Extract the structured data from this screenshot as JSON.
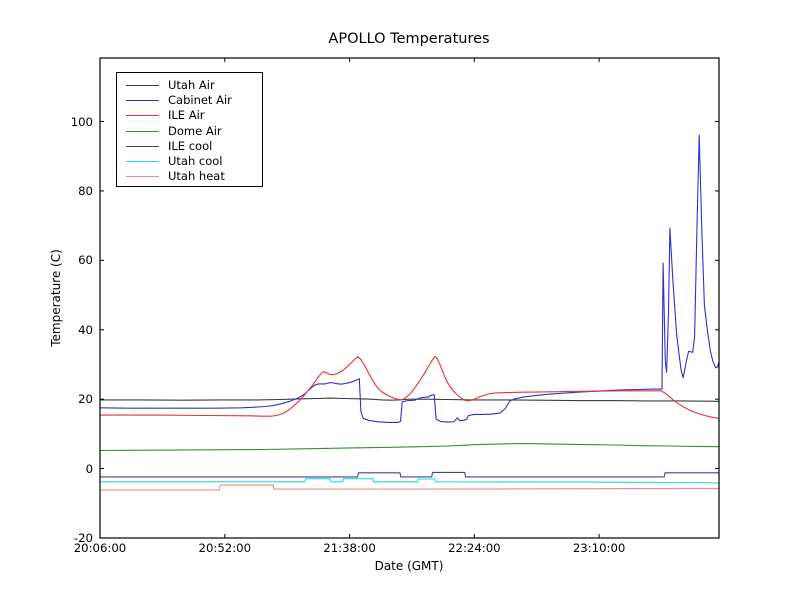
{
  "figure": {
    "title": "APOLLO Temperatures",
    "xlabel": "Date (GMT)",
    "ylabel": "Temperature (C)"
  },
  "chart_data": {
    "type": "line",
    "title": "APOLLO Temperatures",
    "xlabel": "Date (GMT)",
    "ylabel": "Temperature (C)",
    "x_unit": "minutes after 20:06:00 GMT",
    "xlim": [
      0,
      228.2
    ],
    "ylim": [
      -20,
      118.3
    ],
    "yticks": [
      -20,
      0,
      20,
      40,
      60,
      80,
      100
    ],
    "xticks": [
      {
        "t": 0,
        "label": "20:06:00"
      },
      {
        "t": 46,
        "label": "20:52:00"
      },
      {
        "t": 92,
        "label": "21:38:00"
      },
      {
        "t": 138,
        "label": "22:24:00"
      },
      {
        "t": 184,
        "label": "23:10:00"
      }
    ],
    "grid": false,
    "legend_position": "upper left",
    "series": [
      {
        "name": "Utah Air",
        "color": "#3c3c3c",
        "points": [
          [
            0,
            19.8
          ],
          [
            15,
            19.8
          ],
          [
            30,
            19.7
          ],
          [
            45,
            19.8
          ],
          [
            58,
            19.8
          ],
          [
            66,
            19.9
          ],
          [
            70,
            20.0
          ],
          [
            75,
            20.1
          ],
          [
            80,
            20.2
          ],
          [
            85,
            20.3
          ],
          [
            90,
            20.2
          ],
          [
            95,
            20.1
          ],
          [
            100,
            20.0
          ],
          [
            104,
            19.8
          ],
          [
            107,
            19.7
          ],
          [
            110,
            19.8
          ],
          [
            114,
            20.0
          ],
          [
            120,
            20.0
          ],
          [
            128,
            19.9
          ],
          [
            138,
            19.8
          ],
          [
            150,
            19.8
          ],
          [
            162,
            19.7
          ],
          [
            175,
            19.6
          ],
          [
            188,
            19.6
          ],
          [
            200,
            19.5
          ],
          [
            214,
            19.5
          ],
          [
            228.2,
            19.4
          ]
        ]
      },
      {
        "name": "Cabinet Air",
        "color": "#3030d0",
        "points": [
          [
            0,
            17.5
          ],
          [
            12,
            17.4
          ],
          [
            28,
            17.4
          ],
          [
            42,
            17.4
          ],
          [
            52,
            17.5
          ],
          [
            57,
            17.7
          ],
          [
            61,
            17.9
          ],
          [
            64,
            18.2
          ],
          [
            67,
            18.7
          ],
          [
            70,
            19.4
          ],
          [
            73,
            20.3
          ],
          [
            75.5,
            21.5
          ],
          [
            77.5,
            23.0
          ],
          [
            79,
            24.0
          ],
          [
            80.5,
            24.4
          ],
          [
            83,
            24.4
          ],
          [
            85,
            24.8
          ],
          [
            87,
            24.5
          ],
          [
            89,
            24.3
          ],
          [
            91,
            24.6
          ],
          [
            93,
            25.0
          ],
          [
            94.5,
            25.5
          ],
          [
            95.6,
            25.9
          ],
          [
            96.2,
            16.5
          ],
          [
            97,
            14.5
          ],
          [
            99,
            13.9
          ],
          [
            102,
            13.5
          ],
          [
            106,
            13.3
          ],
          [
            110,
            13.3
          ],
          [
            110.8,
            13.6
          ],
          [
            111.4,
            19.2
          ],
          [
            113.5,
            19.6
          ],
          [
            116,
            19.7
          ],
          [
            117.3,
            20.2
          ],
          [
            119,
            20.5
          ],
          [
            121,
            20.6
          ],
          [
            121.8,
            21.1
          ],
          [
            123.2,
            21.3
          ],
          [
            123.9,
            14.2
          ],
          [
            125.5,
            13.6
          ],
          [
            128,
            13.4
          ],
          [
            130.5,
            13.5
          ],
          [
            131.7,
            14.6
          ],
          [
            132.7,
            13.8
          ],
          [
            134,
            13.9
          ],
          [
            135.2,
            14.2
          ],
          [
            135.8,
            15.3
          ],
          [
            138,
            15.6
          ],
          [
            141,
            15.6
          ],
          [
            144.5,
            15.7
          ],
          [
            147.4,
            16.0
          ],
          [
            149.3,
            17.2
          ],
          [
            151.1,
            19.5
          ],
          [
            153,
            20.1
          ],
          [
            156,
            20.6
          ],
          [
            160,
            21.0
          ],
          [
            165,
            21.4
          ],
          [
            170,
            21.7
          ],
          [
            176,
            22.0
          ],
          [
            183,
            22.3
          ],
          [
            191,
            22.6
          ],
          [
            199,
            22.8
          ],
          [
            204,
            22.9
          ],
          [
            207.2,
            22.9
          ],
          [
            207.6,
            59.2
          ],
          [
            208.4,
            31.0
          ],
          [
            208.9,
            27.7
          ],
          [
            209.6,
            45.0
          ],
          [
            210.1,
            69.3
          ],
          [
            211.2,
            54.0
          ],
          [
            212.6,
            38.5
          ],
          [
            214.2,
            28.5
          ],
          [
            215,
            26.2
          ],
          [
            216.2,
            31.0
          ],
          [
            217,
            33.8
          ],
          [
            218.5,
            33.5
          ],
          [
            219.2,
            38.0
          ],
          [
            220.1,
            70.0
          ],
          [
            220.9,
            96.1
          ],
          [
            221.9,
            68.0
          ],
          [
            222.8,
            47.0
          ],
          [
            223.8,
            40.5
          ],
          [
            225,
            34.0
          ],
          [
            226,
            30.8
          ],
          [
            227,
            29.0
          ],
          [
            227.7,
            29.3
          ],
          [
            228.2,
            30.8
          ]
        ]
      },
      {
        "name": "ILE Air",
        "color": "#e43535",
        "points": [
          [
            0,
            15.4
          ],
          [
            20,
            15.4
          ],
          [
            40,
            15.3
          ],
          [
            55,
            15.2
          ],
          [
            60,
            15.1
          ],
          [
            63,
            15.1
          ],
          [
            65,
            15.3
          ],
          [
            67.5,
            15.9
          ],
          [
            69.5,
            16.8
          ],
          [
            71.5,
            18.1
          ],
          [
            73.5,
            19.6
          ],
          [
            75.5,
            21.3
          ],
          [
            77.5,
            23.2
          ],
          [
            79.5,
            25.2
          ],
          [
            81,
            26.9
          ],
          [
            82.2,
            27.9
          ],
          [
            83.3,
            27.7
          ],
          [
            84.5,
            27.2
          ],
          [
            85.9,
            27.0
          ],
          [
            87.5,
            27.4
          ],
          [
            89.5,
            28.3
          ],
          [
            91.5,
            29.6
          ],
          [
            93,
            30.8
          ],
          [
            94.2,
            31.7
          ],
          [
            95.1,
            32.2
          ],
          [
            96,
            31.6
          ],
          [
            97.5,
            29.8
          ],
          [
            99,
            27.6
          ],
          [
            100.6,
            25.3
          ],
          [
            102.2,
            23.4
          ],
          [
            103.9,
            22.1
          ],
          [
            105.7,
            21.2
          ],
          [
            107.6,
            20.6
          ],
          [
            109.1,
            20.1
          ],
          [
            110.6,
            19.8
          ],
          [
            111.8,
            20.0
          ],
          [
            113,
            20.6
          ],
          [
            114.5,
            21.7
          ],
          [
            116,
            23.2
          ],
          [
            117.7,
            25.1
          ],
          [
            119.4,
            27.2
          ],
          [
            121,
            29.3
          ],
          [
            122.3,
            31.0
          ],
          [
            123.5,
            32.3
          ],
          [
            124.4,
            31.6
          ],
          [
            125.4,
            29.8
          ],
          [
            126.6,
            27.4
          ],
          [
            128,
            25.0
          ],
          [
            129.6,
            23.0
          ],
          [
            131.3,
            21.5
          ],
          [
            133,
            20.4
          ],
          [
            134.5,
            19.7
          ],
          [
            135.2,
            19.5
          ],
          [
            136.5,
            19.6
          ],
          [
            138,
            20.0
          ],
          [
            140,
            20.7
          ],
          [
            142,
            21.2
          ],
          [
            143.8,
            21.6
          ],
          [
            146,
            21.8
          ],
          [
            150,
            21.9
          ],
          [
            156,
            22.0
          ],
          [
            164,
            22.1
          ],
          [
            172,
            22.2
          ],
          [
            182,
            22.3
          ],
          [
            192,
            22.4
          ],
          [
            200,
            22.4
          ],
          [
            206.8,
            22.4
          ],
          [
            208,
            21.9
          ],
          [
            209.5,
            21.0
          ],
          [
            211,
            20.0
          ],
          [
            213,
            18.8
          ],
          [
            215.5,
            17.6
          ],
          [
            218,
            16.6
          ],
          [
            220.5,
            15.9
          ],
          [
            223,
            15.3
          ],
          [
            225.5,
            14.8
          ],
          [
            228.2,
            14.4
          ]
        ]
      },
      {
        "name": "Dome Air",
        "color": "#3c8c3c",
        "points": [
          [
            0,
            5.2
          ],
          [
            20,
            5.3
          ],
          [
            40,
            5.4
          ],
          [
            60,
            5.5
          ],
          [
            75,
            5.7
          ],
          [
            90,
            5.9
          ],
          [
            105,
            6.1
          ],
          [
            118,
            6.3
          ],
          [
            128,
            6.5
          ],
          [
            134,
            6.7
          ],
          [
            139,
            6.9
          ],
          [
            143,
            7.0
          ],
          [
            148,
            7.1
          ],
          [
            153,
            7.2
          ],
          [
            158,
            7.2
          ],
          [
            165,
            7.1
          ],
          [
            172,
            7.0
          ],
          [
            180,
            6.9
          ],
          [
            190,
            6.8
          ],
          [
            200,
            6.6
          ],
          [
            210,
            6.5
          ],
          [
            220,
            6.4
          ],
          [
            228.2,
            6.3
          ]
        ]
      },
      {
        "name": "ILE cool",
        "color": "#41419b",
        "points": [
          [
            0,
            -2.4
          ],
          [
            95,
            -2.4
          ],
          [
            95.3,
            -1.2
          ],
          [
            110.6,
            -1.2
          ],
          [
            110.9,
            -2.4
          ],
          [
            122.3,
            -2.4
          ],
          [
            122.6,
            -1.1
          ],
          [
            134.5,
            -1.1
          ],
          [
            134.8,
            -2.4
          ],
          [
            208,
            -2.4
          ],
          [
            208.3,
            -1.2
          ],
          [
            228.2,
            -1.2
          ]
        ]
      },
      {
        "name": "Utah cool",
        "color": "#20dcdc",
        "points": [
          [
            0,
            -3.8
          ],
          [
            75.5,
            -3.8
          ],
          [
            75.8,
            -2.9
          ],
          [
            84.8,
            -2.9
          ],
          [
            85.1,
            -3.8
          ],
          [
            89.5,
            -3.8
          ],
          [
            89.8,
            -2.9
          ],
          [
            100.6,
            -2.9
          ],
          [
            100.9,
            -3.8
          ],
          [
            117,
            -3.8
          ],
          [
            117.3,
            -3.0
          ],
          [
            123.5,
            -3.0
          ],
          [
            123.8,
            -3.8
          ],
          [
            150,
            -3.85
          ],
          [
            180,
            -3.9
          ],
          [
            210,
            -4.0
          ],
          [
            228.2,
            -4.1
          ]
        ]
      },
      {
        "name": "Utah heat",
        "color": "#f38a8a",
        "points": [
          [
            0,
            -6.2
          ],
          [
            44,
            -6.2
          ],
          [
            44.3,
            -4.7
          ],
          [
            63.8,
            -4.7
          ],
          [
            64.1,
            -5.9
          ],
          [
            120,
            -5.9
          ],
          [
            180,
            -5.8
          ],
          [
            228.2,
            -5.7
          ]
        ]
      }
    ]
  }
}
